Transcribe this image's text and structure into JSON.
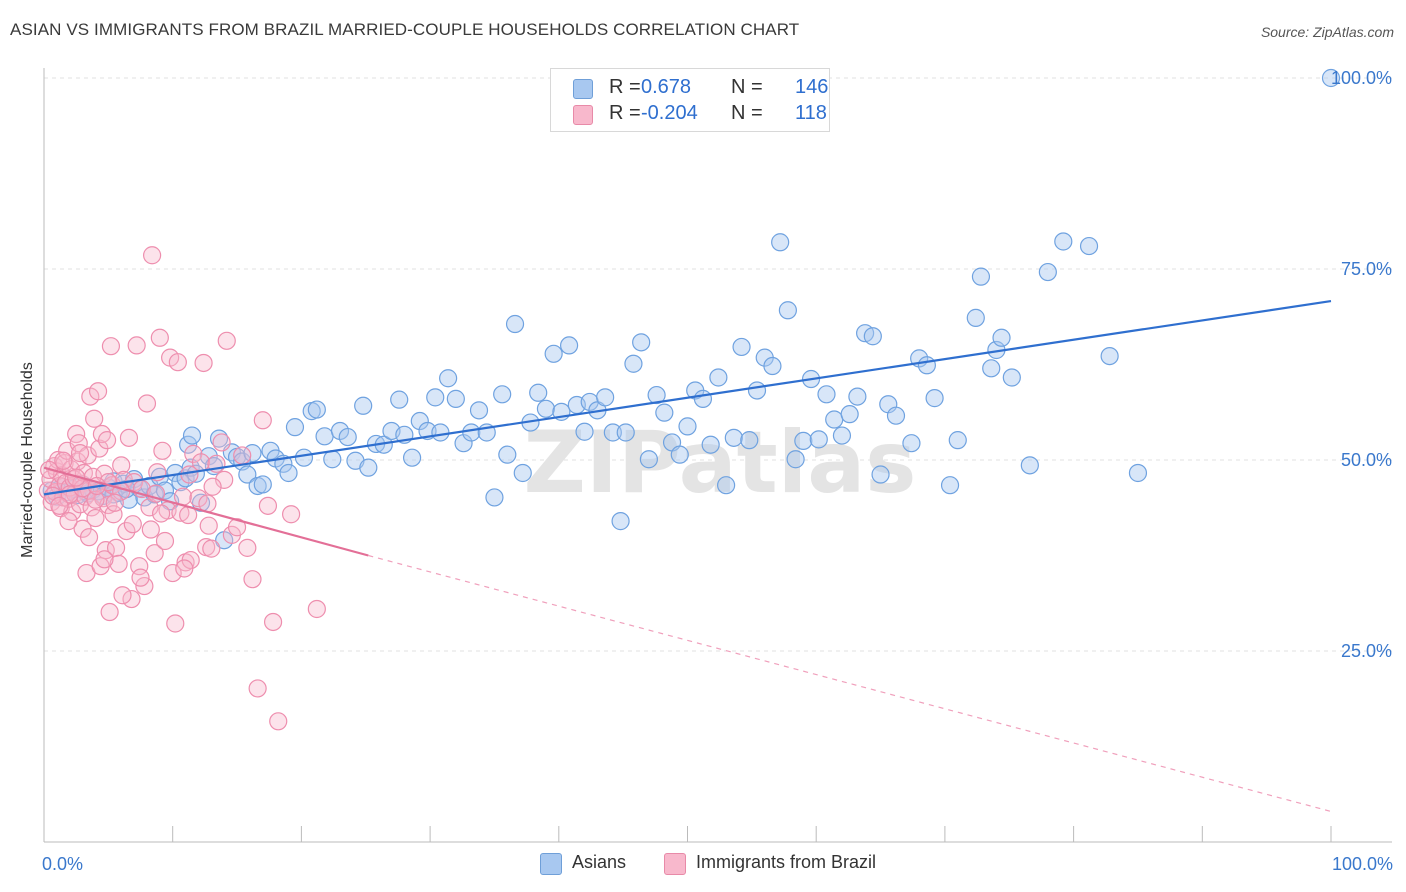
{
  "title": "ASIAN VS IMMIGRANTS FROM BRAZIL MARRIED-COUPLE HOUSEHOLDS CORRELATION CHART",
  "source": "Source: ZipAtlas.com",
  "watermark": "ZIPatlas",
  "legend": {
    "rows": [
      {
        "r_label": "R =",
        "r_value": "0.678",
        "n_label": "N =",
        "n_value": "146",
        "color": "#a8c8f0",
        "border": "#6f9fd8"
      },
      {
        "r_label": "R =",
        "r_value": "-0.204",
        "n_label": "N =",
        "n_value": "118",
        "color": "#f8b8cc",
        "border": "#e88aa8"
      }
    ]
  },
  "bottom_legend": [
    {
      "label": "Asians",
      "color": "#a8c8f0",
      "border": "#6f9fd8"
    },
    {
      "label": "Immigrants from Brazil",
      "color": "#f8b8cc",
      "border": "#e88aa8"
    }
  ],
  "chart_data": {
    "type": "scatter",
    "title": "ASIAN VS IMMIGRANTS FROM BRAZIL MARRIED-COUPLE HOUSEHOLDS CORRELATION CHART",
    "xlabel": "",
    "ylabel": "Married-couple Households",
    "xlim": [
      0,
      100
    ],
    "ylim": [
      0,
      100
    ],
    "x_tick_labels": [
      "0.0%",
      "100.0%"
    ],
    "y_tick_labels": [
      "25.0%",
      "50.0%",
      "75.0%",
      "100.0%"
    ],
    "y_ticks": [
      25,
      50,
      75,
      100
    ],
    "grid": true,
    "legend_position": "top-center",
    "series": [
      {
        "name": "Asians",
        "color": "#6fa2e0",
        "fill": "rgba(168,200,240,0.45)",
        "trend": {
          "x0": 0,
          "y0": 45.5,
          "x1": 100,
          "y1": 70.8,
          "color": "#2f6fcf"
        },
        "points": [
          [
            0.6,
            46.0
          ],
          [
            1.0,
            45.2
          ],
          [
            1.4,
            46.5
          ],
          [
            1.8,
            45.8
          ],
          [
            2.2,
            46.2
          ],
          [
            2.6,
            45.4
          ],
          [
            3.0,
            46.8
          ],
          [
            3.4,
            45.6
          ],
          [
            3.8,
            46.1
          ],
          [
            4.2,
            45.9
          ],
          [
            4.6,
            45.3
          ],
          [
            5.0,
            46.4
          ],
          [
            5.4,
            47.2
          ],
          [
            5.8,
            45.7
          ],
          [
            6.2,
            46.9
          ],
          [
            6.6,
            44.8
          ],
          [
            7.0,
            47.5
          ],
          [
            7.4,
            46.3
          ],
          [
            7.8,
            45.1
          ],
          [
            8.2,
            46.6
          ],
          [
            8.6,
            45.5
          ],
          [
            9.0,
            47.8
          ],
          [
            9.4,
            46.0
          ],
          [
            9.8,
            44.6
          ],
          [
            10.2,
            48.3
          ],
          [
            10.6,
            47.1
          ],
          [
            11.0,
            47.6
          ],
          [
            11.4,
            49.0
          ],
          [
            11.8,
            48.2
          ],
          [
            12.2,
            44.4
          ],
          [
            11.2,
            52.0
          ],
          [
            11.5,
            53.2
          ],
          [
            12.8,
            50.5
          ],
          [
            13.2,
            49.2
          ],
          [
            13.6,
            52.8
          ],
          [
            14.0,
            39.5
          ],
          [
            14.6,
            51.0
          ],
          [
            15.0,
            50.4
          ],
          [
            15.4,
            49.8
          ],
          [
            15.8,
            48.1
          ],
          [
            16.2,
            50.9
          ],
          [
            16.6,
            46.6
          ],
          [
            17.0,
            46.8
          ],
          [
            17.6,
            51.2
          ],
          [
            18.0,
            50.2
          ],
          [
            18.6,
            49.5
          ],
          [
            19.0,
            48.3
          ],
          [
            19.5,
            54.3
          ],
          [
            20.2,
            50.3
          ],
          [
            20.8,
            56.4
          ],
          [
            21.2,
            56.6
          ],
          [
            21.8,
            53.1
          ],
          [
            22.4,
            50.1
          ],
          [
            23.0,
            53.8
          ],
          [
            23.6,
            53.0
          ],
          [
            24.2,
            49.9
          ],
          [
            24.8,
            57.1
          ],
          [
            25.2,
            49.0
          ],
          [
            25.8,
            52.1
          ],
          [
            26.4,
            52.0
          ],
          [
            27.0,
            53.8
          ],
          [
            27.6,
            57.9
          ],
          [
            28.0,
            53.3
          ],
          [
            28.6,
            50.3
          ],
          [
            29.2,
            55.1
          ],
          [
            29.8,
            53.8
          ],
          [
            30.4,
            58.2
          ],
          [
            30.8,
            53.6
          ],
          [
            31.4,
            60.7
          ],
          [
            32.0,
            58.0
          ],
          [
            32.6,
            52.2
          ],
          [
            33.2,
            53.6
          ],
          [
            33.8,
            56.5
          ],
          [
            34.4,
            53.6
          ],
          [
            35.0,
            45.1
          ],
          [
            35.6,
            58.6
          ],
          [
            36.0,
            50.7
          ],
          [
            36.6,
            67.8
          ],
          [
            37.2,
            48.3
          ],
          [
            37.8,
            54.9
          ],
          [
            38.4,
            58.8
          ],
          [
            39.0,
            56.7
          ],
          [
            39.6,
            63.9
          ],
          [
            40.2,
            56.3
          ],
          [
            40.8,
            65.0
          ],
          [
            41.4,
            57.2
          ],
          [
            42.0,
            53.7
          ],
          [
            42.4,
            57.6
          ],
          [
            43.0,
            56.5
          ],
          [
            43.6,
            58.2
          ],
          [
            44.2,
            53.6
          ],
          [
            44.8,
            42.0
          ],
          [
            45.2,
            53.6
          ],
          [
            45.8,
            62.6
          ],
          [
            46.4,
            65.4
          ],
          [
            47.0,
            50.1
          ],
          [
            47.6,
            58.5
          ],
          [
            48.2,
            56.2
          ],
          [
            48.8,
            52.3
          ],
          [
            49.4,
            50.7
          ],
          [
            50.0,
            54.4
          ],
          [
            50.6,
            59.1
          ],
          [
            51.2,
            58.0
          ],
          [
            51.8,
            52.0
          ],
          [
            52.4,
            60.8
          ],
          [
            53.0,
            46.7
          ],
          [
            53.6,
            52.9
          ],
          [
            54.2,
            64.8
          ],
          [
            54.8,
            52.6
          ],
          [
            55.4,
            59.1
          ],
          [
            56.0,
            63.4
          ],
          [
            56.6,
            62.3
          ],
          [
            57.2,
            78.5
          ],
          [
            57.8,
            69.6
          ],
          [
            58.4,
            50.1
          ],
          [
            59.0,
            52.5
          ],
          [
            59.6,
            60.6
          ],
          [
            60.2,
            52.7
          ],
          [
            60.8,
            58.6
          ],
          [
            61.4,
            55.3
          ],
          [
            62.0,
            53.2
          ],
          [
            62.6,
            56.0
          ],
          [
            63.2,
            58.3
          ],
          [
            63.8,
            66.6
          ],
          [
            64.4,
            66.2
          ],
          [
            65.0,
            48.1
          ],
          [
            65.6,
            57.3
          ],
          [
            66.2,
            55.8
          ],
          [
            67.4,
            52.2
          ],
          [
            68.0,
            63.3
          ],
          [
            68.6,
            62.4
          ],
          [
            69.2,
            58.1
          ],
          [
            70.4,
            46.7
          ],
          [
            71.0,
            52.6
          ],
          [
            72.4,
            68.6
          ],
          [
            72.8,
            74.0
          ],
          [
            73.6,
            62.0
          ],
          [
            74.0,
            64.4
          ],
          [
            74.4,
            66.0
          ],
          [
            75.2,
            60.8
          ],
          [
            76.6,
            49.3
          ],
          [
            78.0,
            74.6
          ],
          [
            79.2,
            78.6
          ],
          [
            81.2,
            78.0
          ],
          [
            82.8,
            63.6
          ],
          [
            85.0,
            48.3
          ],
          [
            100.0,
            100.0
          ],
          [
            3.2,
            45.9
          ],
          [
            5.4,
            45.5
          ],
          [
            6.4,
            46.2
          ]
        ]
      },
      {
        "name": "Immigrants from Brazil",
        "color": "#ee8eae",
        "fill": "rgba(248,184,204,0.40)",
        "trend": {
          "x0": 0,
          "y0": 49.0,
          "x1": 25.2,
          "y1": 37.5,
          "color": "#e36f97"
        },
        "trend_dashed": {
          "x0": 25.2,
          "y0": 37.5,
          "x1": 100,
          "y1": 4.0,
          "color": "#f0a0bc"
        },
        "points": [
          [
            0.3,
            46.0
          ],
          [
            0.5,
            47.5
          ],
          [
            0.6,
            44.5
          ],
          [
            0.8,
            49.2
          ],
          [
            0.9,
            45.8
          ],
          [
            1.0,
            48.5
          ],
          [
            1.1,
            50.0
          ],
          [
            1.2,
            46.6
          ],
          [
            1.3,
            43.7
          ],
          [
            1.4,
            48.0
          ],
          [
            1.5,
            45.1
          ],
          [
            1.6,
            49.6
          ],
          [
            1.7,
            47.0
          ],
          [
            1.8,
            51.2
          ],
          [
            1.9,
            44.9
          ],
          [
            2.0,
            46.4
          ],
          [
            2.1,
            48.8
          ],
          [
            2.2,
            43.2
          ],
          [
            2.3,
            47.5
          ],
          [
            2.4,
            45.6
          ],
          [
            2.5,
            53.4
          ],
          [
            2.6,
            49.8
          ],
          [
            2.7,
            52.2
          ],
          [
            2.8,
            44.2
          ],
          [
            2.9,
            46.9
          ],
          [
            3.0,
            41.0
          ],
          [
            3.1,
            48.3
          ],
          [
            3.2,
            45.2
          ],
          [
            3.3,
            35.2
          ],
          [
            3.4,
            50.6
          ],
          [
            3.5,
            46.0
          ],
          [
            3.6,
            58.3
          ],
          [
            3.7,
            43.8
          ],
          [
            3.8,
            47.8
          ],
          [
            3.9,
            55.4
          ],
          [
            4.0,
            42.4
          ],
          [
            4.2,
            59.0
          ],
          [
            4.3,
            51.5
          ],
          [
            4.4,
            36.1
          ],
          [
            4.5,
            53.4
          ],
          [
            4.6,
            45.0
          ],
          [
            4.7,
            48.2
          ],
          [
            4.8,
            38.2
          ],
          [
            4.9,
            52.6
          ],
          [
            5.0,
            44.1
          ],
          [
            5.1,
            30.1
          ],
          [
            5.2,
            64.9
          ],
          [
            5.3,
            46.7
          ],
          [
            5.4,
            42.9
          ],
          [
            5.6,
            38.5
          ],
          [
            5.8,
            36.4
          ],
          [
            6.0,
            49.3
          ],
          [
            6.2,
            47.4
          ],
          [
            6.4,
            40.7
          ],
          [
            6.6,
            52.9
          ],
          [
            6.8,
            31.8
          ],
          [
            7.0,
            47.1
          ],
          [
            7.2,
            65.0
          ],
          [
            7.4,
            36.1
          ],
          [
            7.6,
            46.2
          ],
          [
            7.8,
            33.5
          ],
          [
            8.0,
            57.4
          ],
          [
            8.2,
            43.8
          ],
          [
            8.4,
            76.8
          ],
          [
            8.6,
            37.8
          ],
          [
            8.8,
            48.4
          ],
          [
            9.0,
            66.0
          ],
          [
            9.2,
            51.2
          ],
          [
            9.4,
            39.4
          ],
          [
            9.6,
            43.4
          ],
          [
            9.8,
            63.4
          ],
          [
            10.0,
            35.2
          ],
          [
            10.2,
            28.6
          ],
          [
            10.4,
            62.8
          ],
          [
            10.6,
            43.1
          ],
          [
            10.8,
            45.2
          ],
          [
            11.0,
            36.6
          ],
          [
            11.2,
            42.8
          ],
          [
            11.4,
            36.9
          ],
          [
            11.6,
            50.8
          ],
          [
            12.0,
            45.0
          ],
          [
            12.2,
            49.7
          ],
          [
            12.4,
            62.7
          ],
          [
            12.6,
            38.6
          ],
          [
            12.8,
            41.4
          ],
          [
            13.0,
            38.4
          ],
          [
            13.4,
            49.5
          ],
          [
            13.8,
            52.3
          ],
          [
            14.0,
            47.4
          ],
          [
            14.2,
            65.6
          ],
          [
            14.6,
            40.2
          ],
          [
            15.0,
            41.2
          ],
          [
            15.4,
            50.6
          ],
          [
            15.8,
            38.5
          ],
          [
            16.2,
            34.4
          ],
          [
            16.6,
            20.1
          ],
          [
            17.0,
            55.2
          ],
          [
            17.4,
            44.0
          ],
          [
            17.8,
            28.8
          ],
          [
            18.2,
            15.8
          ],
          [
            19.2,
            42.9
          ],
          [
            21.2,
            30.5
          ],
          [
            2.0,
            45.5
          ],
          [
            3.0,
            46.3
          ],
          [
            4.0,
            44.8
          ],
          [
            5.0,
            47.1
          ],
          [
            6.0,
            45.9
          ],
          [
            1.5,
            49.9
          ],
          [
            2.5,
            47.7
          ],
          [
            0.7,
            45.3
          ],
          [
            1.9,
            42.0
          ],
          [
            3.5,
            39.9
          ],
          [
            4.7,
            37.0
          ],
          [
            6.1,
            32.3
          ],
          [
            7.5,
            34.6
          ],
          [
            9.1,
            43.0
          ],
          [
            10.9,
            35.8
          ],
          [
            12.7,
            44.3
          ],
          [
            8.3,
            40.9
          ],
          [
            0.4,
            48.7
          ],
          [
            1.2,
            44.0
          ],
          [
            2.8,
            50.9
          ],
          [
            4.1,
            46.6
          ],
          [
            5.5,
            44.4
          ],
          [
            6.9,
            41.6
          ],
          [
            8.7,
            45.6
          ],
          [
            11.3,
            48.1
          ],
          [
            13.1,
            46.5
          ]
        ]
      }
    ]
  }
}
